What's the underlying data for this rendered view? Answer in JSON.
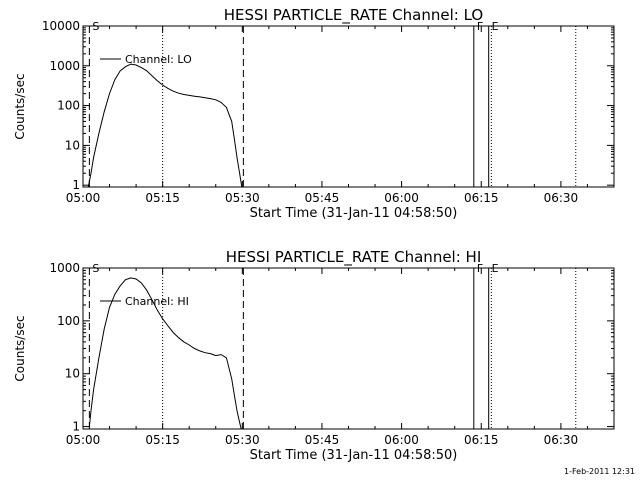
{
  "footer": {
    "date_stamp": "1-Feb-2011 12:31"
  },
  "chart_data": [
    {
      "type": "line",
      "title": "HESSI PARTICLE_RATE Channel: LO",
      "xlabel": "Start Time (31-Jan-11 04:58:50)",
      "ylabel": "Counts/sec",
      "x_unit": "minutes after 05:00 UT",
      "xlim": [
        0,
        100
      ],
      "ylim": [
        0.9,
        10000
      ],
      "yscale": "log",
      "x_tick_labels": [
        "05:00",
        "05:15",
        "05:30",
        "05:45",
        "06:00",
        "06:15",
        "06:30"
      ],
      "y_tick_labels": [
        "1",
        "10",
        "100",
        "1000",
        "10000"
      ],
      "legend": {
        "label": "Channel: LO",
        "position": "top-left"
      },
      "markers": [
        {
          "label": "S",
          "x": 1.2,
          "style": "dashed"
        },
        {
          "label": "",
          "x": 15.0,
          "style": "dotted"
        },
        {
          "label": "",
          "x": 30.2,
          "style": "dashed"
        },
        {
          "label": "F",
          "x": 73.6,
          "style": "solid"
        },
        {
          "label": "E",
          "x": 76.4,
          "style": "solid"
        },
        {
          "label": "",
          "x": 76.9,
          "style": "dotted"
        },
        {
          "label": "",
          "x": 92.8,
          "style": "dotted"
        }
      ],
      "series": [
        {
          "name": "Channel: LO",
          "x": [
            1.0,
            1.5,
            2.0,
            3.0,
            4.0,
            5.0,
            6.0,
            7.0,
            8.0,
            9.0,
            10.0,
            11.0,
            12.0,
            13.0,
            14.0,
            15.0,
            16.0,
            17.0,
            18.0,
            19.0,
            20.0,
            21.0,
            22.0,
            23.0,
            24.0,
            25.0,
            26.0,
            27.0,
            28.0,
            28.5,
            29.0,
            29.5,
            29.9
          ],
          "y": [
            0.9,
            2,
            5,
            20,
            70,
            200,
            450,
            750,
            950,
            1100,
            1050,
            900,
            750,
            560,
            420,
            330,
            270,
            230,
            205,
            190,
            180,
            172,
            165,
            158,
            150,
            140,
            120,
            90,
            40,
            15,
            5,
            2,
            0.9
          ]
        }
      ]
    },
    {
      "type": "line",
      "title": "HESSI PARTICLE_RATE Channel: HI",
      "xlabel": "Start Time (31-Jan-11 04:58:50)",
      "ylabel": "Counts/sec",
      "x_unit": "minutes after 05:00 UT",
      "xlim": [
        0,
        100
      ],
      "ylim": [
        0.9,
        1000
      ],
      "yscale": "log",
      "x_tick_labels": [
        "05:00",
        "05:15",
        "05:30",
        "05:45",
        "06:00",
        "06:15",
        "06:30"
      ],
      "y_tick_labels": [
        "1",
        "10",
        "100",
        "1000"
      ],
      "legend": {
        "label": "Channel: HI",
        "position": "top-left"
      },
      "markers": [
        {
          "label": "S",
          "x": 1.2,
          "style": "dashed"
        },
        {
          "label": "",
          "x": 15.0,
          "style": "dotted"
        },
        {
          "label": "",
          "x": 30.2,
          "style": "dashed"
        },
        {
          "label": "F",
          "x": 73.6,
          "style": "solid"
        },
        {
          "label": "E",
          "x": 76.4,
          "style": "solid"
        },
        {
          "label": "",
          "x": 76.9,
          "style": "dotted"
        },
        {
          "label": "",
          "x": 92.8,
          "style": "dotted"
        }
      ],
      "series": [
        {
          "name": "Channel: HI",
          "x": [
            1.2,
            1.5,
            2.0,
            3.0,
            4.0,
            5.0,
            6.0,
            7.0,
            8.0,
            9.0,
            10.0,
            11.0,
            12.0,
            13.0,
            14.0,
            15.0,
            16.0,
            17.0,
            18.0,
            19.0,
            20.0,
            21.0,
            22.0,
            23.0,
            24.0,
            25.0,
            26.0,
            27.0,
            28.0,
            28.5,
            29.0,
            29.5,
            29.8
          ],
          "y": [
            1.0,
            2,
            5,
            20,
            70,
            180,
            320,
            460,
            600,
            650,
            620,
            520,
            380,
            250,
            160,
            110,
            80,
            60,
            48,
            40,
            35,
            30,
            27,
            25,
            24,
            22,
            23,
            20,
            8,
            4,
            2,
            1.2,
            0.9
          ]
        }
      ]
    }
  ]
}
